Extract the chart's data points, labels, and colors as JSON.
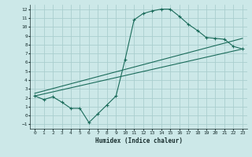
{
  "bg_color": "#cce8e8",
  "grid_color": "#aacece",
  "line_color": "#1a6b5a",
  "xlabel": "Humidex (Indice chaleur)",
  "xlim": [
    -0.5,
    23.5
  ],
  "ylim": [
    -1.5,
    12.5
  ],
  "xticks": [
    0,
    1,
    2,
    3,
    4,
    5,
    6,
    7,
    8,
    9,
    10,
    11,
    12,
    13,
    14,
    15,
    16,
    17,
    18,
    19,
    20,
    21,
    22,
    23
  ],
  "yticks": [
    -1,
    0,
    1,
    2,
    3,
    4,
    5,
    6,
    7,
    8,
    9,
    10,
    11,
    12
  ],
  "curve1_x": [
    0,
    1,
    2,
    3,
    4,
    5,
    6,
    7,
    8,
    9,
    10,
    11,
    12,
    13,
    14,
    15,
    16,
    17,
    18,
    19,
    20,
    21,
    22,
    23
  ],
  "curve1_y": [
    2.2,
    1.8,
    2.1,
    1.5,
    0.8,
    0.8,
    -0.8,
    0.2,
    1.2,
    2.2,
    6.3,
    10.8,
    11.5,
    11.8,
    12.0,
    12.0,
    11.2,
    10.3,
    9.6,
    8.8,
    8.7,
    8.6,
    7.8,
    7.5
  ],
  "curve2_x": [
    0,
    23
  ],
  "curve2_y": [
    2.5,
    8.7
  ],
  "curve3_x": [
    0,
    23
  ],
  "curve3_y": [
    2.2,
    7.5
  ]
}
